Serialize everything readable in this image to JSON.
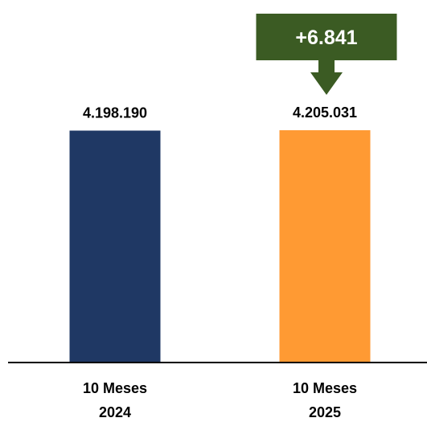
{
  "chart_data": {
    "type": "bar",
    "categories": [
      [
        "10 Meses",
        "2024"
      ],
      [
        "10 Meses",
        "2025"
      ]
    ],
    "values": [
      4198190,
      4205031
    ],
    "value_labels": [
      "4.198.190",
      "4.205.031"
    ],
    "colors": [
      "#1f3864",
      "#ff9a33"
    ],
    "title": "",
    "xlabel": "",
    "ylabel": "",
    "ylim": [
      0,
      4700000
    ],
    "grid": false,
    "legend": "none",
    "annotation": {
      "text": "+6.841",
      "shape": "down-arrow-callout",
      "target_category_index": 1,
      "fill_color": "#3b5b23",
      "text_color": "#ffffff"
    }
  }
}
